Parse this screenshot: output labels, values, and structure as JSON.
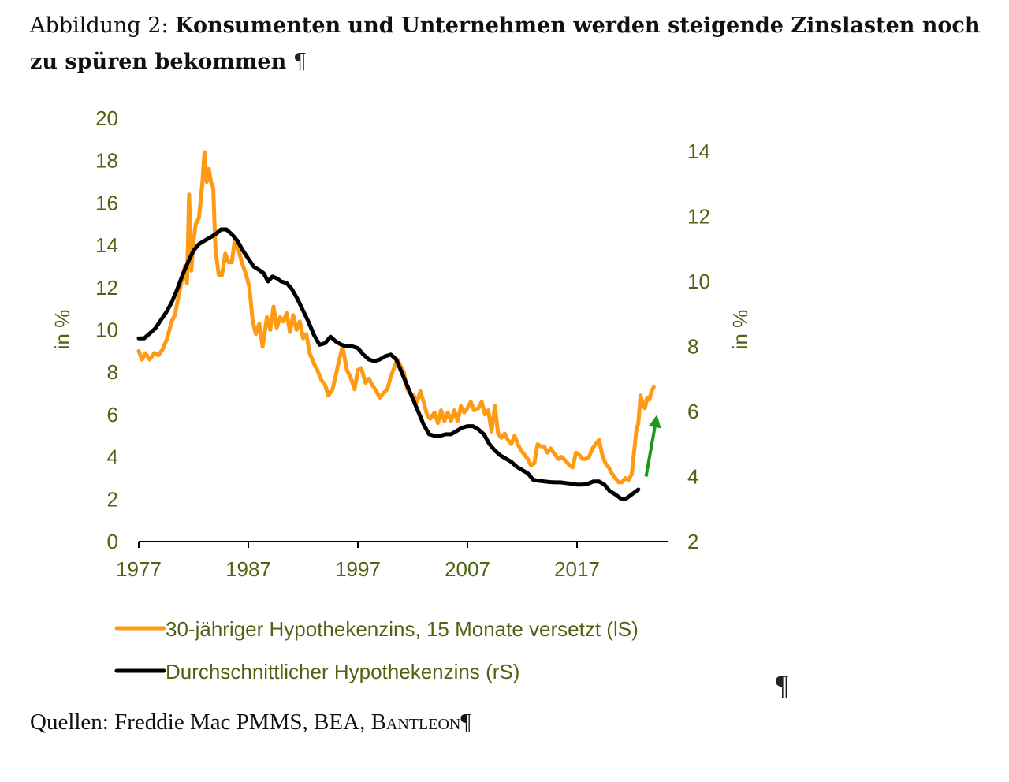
{
  "caption": {
    "prefix": "Abbildung 2: ",
    "title": "Konsumenten und Unternehmen werden steigende Zinslasten noch zu spüren bekommen",
    "pilcrow": "¶"
  },
  "source": {
    "label": "Quellen: Freddie Mac PMMS, BEA, ",
    "brand": "Bantleon",
    "pilcrow": "¶"
  },
  "stray_pilcrow": "¶",
  "colors": {
    "series_orange": "#ff9a14",
    "series_black": "#000000",
    "axis_text": "#4f6411",
    "arrow": "#1a9a1a"
  },
  "chart_data": {
    "type": "line",
    "title": "Konsumenten und Unternehmen werden steigende Zinslasten noch zu spüren bekommen",
    "xlabel": "",
    "xlim": [
      1977,
      2025.4
    ],
    "x_ticks": [
      1977,
      1987,
      1997,
      2007,
      2017
    ],
    "left_axis": {
      "label": "in %",
      "ylim": [
        0,
        20
      ],
      "ticks": [
        0,
        2,
        4,
        6,
        8,
        10,
        12,
        14,
        16,
        18,
        20
      ]
    },
    "right_axis": {
      "label": "in %",
      "ylim": [
        2,
        15
      ],
      "ticks": [
        2,
        4,
        6,
        8,
        10,
        12,
        14
      ]
    },
    "grid": false,
    "legend_position": "bottom",
    "series": [
      {
        "name": "30-jähriger Hypothekenzins, 15 Monate versetzt (lS)",
        "axis": "left",
        "color": "#ff9a14",
        "points": [
          [
            1977.0,
            9.0
          ],
          [
            1977.3,
            8.6
          ],
          [
            1977.6,
            8.9
          ],
          [
            1978.0,
            8.6
          ],
          [
            1978.4,
            8.9
          ],
          [
            1978.8,
            8.8
          ],
          [
            1979.2,
            9.1
          ],
          [
            1979.6,
            9.6
          ],
          [
            1980.0,
            10.4
          ],
          [
            1980.3,
            10.7
          ],
          [
            1980.6,
            11.5
          ],
          [
            1981.0,
            12.5
          ],
          [
            1981.2,
            13.0
          ],
          [
            1981.4,
            12.2
          ],
          [
            1981.6,
            16.4
          ],
          [
            1981.8,
            12.8
          ],
          [
            1982.0,
            14.2
          ],
          [
            1982.2,
            15.0
          ],
          [
            1982.5,
            15.3
          ],
          [
            1982.8,
            16.9
          ],
          [
            1983.0,
            18.4
          ],
          [
            1983.2,
            17.0
          ],
          [
            1983.4,
            17.6
          ],
          [
            1983.6,
            17.0
          ],
          [
            1983.8,
            16.7
          ],
          [
            1984.0,
            13.8
          ],
          [
            1984.3,
            12.6
          ],
          [
            1984.6,
            12.6
          ],
          [
            1984.9,
            13.6
          ],
          [
            1985.2,
            13.2
          ],
          [
            1985.5,
            13.2
          ],
          [
            1985.8,
            14.4
          ],
          [
            1986.1,
            13.8
          ],
          [
            1986.4,
            13.2
          ],
          [
            1986.8,
            12.6
          ],
          [
            1987.1,
            12.0
          ],
          [
            1987.4,
            10.4
          ],
          [
            1987.7,
            9.8
          ],
          [
            1988.0,
            10.3
          ],
          [
            1988.3,
            9.2
          ],
          [
            1988.7,
            10.6
          ],
          [
            1989.0,
            10.0
          ],
          [
            1989.3,
            11.1
          ],
          [
            1989.6,
            10.1
          ],
          [
            1989.9,
            10.6
          ],
          [
            1990.2,
            10.4
          ],
          [
            1990.5,
            10.8
          ],
          [
            1990.8,
            9.9
          ],
          [
            1991.1,
            10.7
          ],
          [
            1991.4,
            10.0
          ],
          [
            1991.7,
            10.4
          ],
          [
            1992.0,
            9.6
          ],
          [
            1992.3,
            9.8
          ],
          [
            1992.6,
            8.9
          ],
          [
            1993.0,
            8.4
          ],
          [
            1993.3,
            8.1
          ],
          [
            1993.7,
            7.6
          ],
          [
            1994.0,
            7.4
          ],
          [
            1994.3,
            6.9
          ],
          [
            1994.7,
            7.2
          ],
          [
            1995.0,
            7.9
          ],
          [
            1995.3,
            8.6
          ],
          [
            1995.6,
            9.2
          ],
          [
            1996.0,
            8.1
          ],
          [
            1996.3,
            7.8
          ],
          [
            1996.7,
            7.2
          ],
          [
            1997.0,
            8.1
          ],
          [
            1997.3,
            8.2
          ],
          [
            1997.7,
            7.5
          ],
          [
            1998.0,
            7.7
          ],
          [
            1998.3,
            7.4
          ],
          [
            1998.7,
            7.1
          ],
          [
            1999.0,
            6.8
          ],
          [
            1999.3,
            7.0
          ],
          [
            1999.7,
            7.2
          ],
          [
            2000.0,
            7.8
          ],
          [
            2000.3,
            8.2
          ],
          [
            2000.6,
            8.6
          ],
          [
            2000.9,
            8.3
          ],
          [
            2001.2,
            8.0
          ],
          [
            2001.5,
            7.2
          ],
          [
            2001.8,
            7.0
          ],
          [
            2002.1,
            6.9
          ],
          [
            2002.4,
            6.6
          ],
          [
            2002.7,
            7.1
          ],
          [
            2003.0,
            6.6
          ],
          [
            2003.3,
            6.0
          ],
          [
            2003.6,
            5.8
          ],
          [
            2004.0,
            6.1
          ],
          [
            2004.3,
            5.6
          ],
          [
            2004.6,
            6.2
          ],
          [
            2004.9,
            5.7
          ],
          [
            2005.2,
            6.1
          ],
          [
            2005.5,
            5.7
          ],
          [
            2005.8,
            6.2
          ],
          [
            2006.1,
            5.7
          ],
          [
            2006.4,
            6.4
          ],
          [
            2006.7,
            6.1
          ],
          [
            2007.0,
            6.3
          ],
          [
            2007.3,
            6.6
          ],
          [
            2007.6,
            6.2
          ],
          [
            2008.0,
            6.3
          ],
          [
            2008.3,
            6.6
          ],
          [
            2008.6,
            6.0
          ],
          [
            2008.9,
            6.2
          ],
          [
            2009.2,
            5.2
          ],
          [
            2009.5,
            6.4
          ],
          [
            2009.8,
            5.1
          ],
          [
            2010.1,
            4.9
          ],
          [
            2010.4,
            5.1
          ],
          [
            2010.7,
            4.8
          ],
          [
            2011.0,
            4.6
          ],
          [
            2011.3,
            5.0
          ],
          [
            2011.6,
            4.6
          ],
          [
            2011.9,
            4.3
          ],
          [
            2012.2,
            4.1
          ],
          [
            2012.5,
            3.9
          ],
          [
            2012.8,
            3.6
          ],
          [
            2013.1,
            3.7
          ],
          [
            2013.4,
            4.6
          ],
          [
            2013.7,
            4.5
          ],
          [
            2014.0,
            4.5
          ],
          [
            2014.3,
            4.2
          ],
          [
            2014.6,
            4.4
          ],
          [
            2015.0,
            4.1
          ],
          [
            2015.3,
            3.9
          ],
          [
            2015.6,
            4.0
          ],
          [
            2016.0,
            3.8
          ],
          [
            2016.3,
            3.6
          ],
          [
            2016.6,
            3.5
          ],
          [
            2016.9,
            4.2
          ],
          [
            2017.2,
            4.1
          ],
          [
            2017.5,
            3.9
          ],
          [
            2017.8,
            3.9
          ],
          [
            2018.1,
            4.0
          ],
          [
            2018.4,
            4.4
          ],
          [
            2018.7,
            4.6
          ],
          [
            2019.0,
            4.8
          ],
          [
            2019.3,
            4.1
          ],
          [
            2019.6,
            3.7
          ],
          [
            2019.9,
            3.5
          ],
          [
            2020.2,
            3.2
          ],
          [
            2020.5,
            3.0
          ],
          [
            2020.8,
            2.8
          ],
          [
            2021.1,
            2.8
          ],
          [
            2021.4,
            3.0
          ],
          [
            2021.7,
            2.9
          ],
          [
            2022.0,
            3.2
          ],
          [
            2022.2,
            4.2
          ],
          [
            2022.4,
            5.2
          ],
          [
            2022.6,
            5.6
          ],
          [
            2022.8,
            6.9
          ],
          [
            2023.0,
            6.5
          ],
          [
            2023.2,
            6.3
          ],
          [
            2023.4,
            6.8
          ],
          [
            2023.6,
            6.7
          ],
          [
            2023.8,
            7.1
          ],
          [
            2024.0,
            7.3
          ]
        ]
      },
      {
        "name": "Durchschnittlicher Hypothekenzins (rS)",
        "axis": "right",
        "color": "#000000",
        "points": [
          [
            1977.0,
            8.25
          ],
          [
            1977.5,
            8.25
          ],
          [
            1978.0,
            8.4
          ],
          [
            1978.5,
            8.55
          ],
          [
            1979.0,
            8.8
          ],
          [
            1979.5,
            9.05
          ],
          [
            1980.0,
            9.35
          ],
          [
            1980.5,
            9.75
          ],
          [
            1981.0,
            10.2
          ],
          [
            1981.5,
            10.6
          ],
          [
            1982.0,
            10.95
          ],
          [
            1982.5,
            11.15
          ],
          [
            1983.0,
            11.25
          ],
          [
            1983.5,
            11.35
          ],
          [
            1984.0,
            11.45
          ],
          [
            1984.5,
            11.6
          ],
          [
            1985.0,
            11.6
          ],
          [
            1985.5,
            11.45
          ],
          [
            1986.0,
            11.25
          ],
          [
            1986.5,
            10.95
          ],
          [
            1987.0,
            10.7
          ],
          [
            1987.5,
            10.45
          ],
          [
            1988.0,
            10.35
          ],
          [
            1988.4,
            10.25
          ],
          [
            1988.8,
            10.0
          ],
          [
            1989.2,
            10.15
          ],
          [
            1989.6,
            10.1
          ],
          [
            1990.0,
            10.0
          ],
          [
            1990.5,
            9.95
          ],
          [
            1991.0,
            9.75
          ],
          [
            1991.5,
            9.45
          ],
          [
            1992.0,
            9.1
          ],
          [
            1992.5,
            8.75
          ],
          [
            1993.0,
            8.35
          ],
          [
            1993.5,
            8.05
          ],
          [
            1994.0,
            8.1
          ],
          [
            1994.5,
            8.3
          ],
          [
            1995.0,
            8.15
          ],
          [
            1995.5,
            8.05
          ],
          [
            1996.0,
            8.0
          ],
          [
            1996.5,
            8.0
          ],
          [
            1997.0,
            7.95
          ],
          [
            1997.5,
            7.75
          ],
          [
            1998.0,
            7.6
          ],
          [
            1998.5,
            7.55
          ],
          [
            1999.0,
            7.6
          ],
          [
            1999.5,
            7.7
          ],
          [
            2000.0,
            7.75
          ],
          [
            2000.5,
            7.6
          ],
          [
            2001.0,
            7.2
          ],
          [
            2001.5,
            6.8
          ],
          [
            2002.0,
            6.4
          ],
          [
            2002.5,
            6.0
          ],
          [
            2003.0,
            5.6
          ],
          [
            2003.5,
            5.3
          ],
          [
            2004.0,
            5.25
          ],
          [
            2004.5,
            5.25
          ],
          [
            2005.0,
            5.3
          ],
          [
            2005.5,
            5.3
          ],
          [
            2006.0,
            5.4
          ],
          [
            2006.5,
            5.5
          ],
          [
            2007.0,
            5.55
          ],
          [
            2007.5,
            5.55
          ],
          [
            2008.0,
            5.45
          ],
          [
            2008.5,
            5.3
          ],
          [
            2009.0,
            5.0
          ],
          [
            2009.5,
            4.8
          ],
          [
            2010.0,
            4.65
          ],
          [
            2010.5,
            4.55
          ],
          [
            2011.0,
            4.45
          ],
          [
            2011.5,
            4.3
          ],
          [
            2012.0,
            4.2
          ],
          [
            2012.5,
            4.1
          ],
          [
            2013.0,
            3.9
          ],
          [
            2013.5,
            3.87
          ],
          [
            2014.0,
            3.85
          ],
          [
            2014.5,
            3.83
          ],
          [
            2015.0,
            3.82
          ],
          [
            2015.5,
            3.82
          ],
          [
            2016.0,
            3.8
          ],
          [
            2016.5,
            3.78
          ],
          [
            2017.0,
            3.75
          ],
          [
            2017.5,
            3.75
          ],
          [
            2018.0,
            3.78
          ],
          [
            2018.5,
            3.85
          ],
          [
            2019.0,
            3.85
          ],
          [
            2019.5,
            3.75
          ],
          [
            2020.0,
            3.55
          ],
          [
            2020.5,
            3.45
          ],
          [
            2021.0,
            3.32
          ],
          [
            2021.4,
            3.3
          ],
          [
            2021.8,
            3.4
          ],
          [
            2022.2,
            3.5
          ],
          [
            2022.6,
            3.6
          ]
        ]
      }
    ],
    "annotations": [
      {
        "type": "arrow",
        "color": "#1a9a1a",
        "from": [
          2023.3,
          4.0
        ],
        "to": [
          2024.3,
          5.9
        ],
        "axis": "right",
        "meaning": "steigend"
      }
    ]
  }
}
